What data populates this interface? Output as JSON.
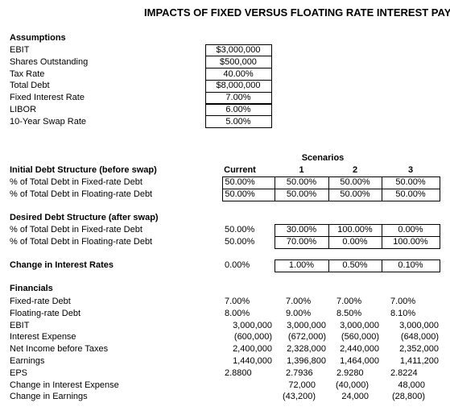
{
  "title": "IMPACTS OF FIXED VERSUS FLOATING RATE INTEREST PAYMENTS",
  "assumptions": {
    "heading": "Assumptions",
    "rows": [
      [
        "EBIT",
        "$3,000,000"
      ],
      [
        "Shares Outstanding",
        "$500,000"
      ],
      [
        "Tax Rate",
        "40.00%"
      ],
      [
        "Total Debt",
        "$8,000,000"
      ],
      [
        "Fixed Interest Rate",
        "7.00%"
      ],
      [
        "LIBOR",
        "6.00%"
      ],
      [
        "10-Year Swap Rate",
        "5.00%"
      ]
    ]
  },
  "scenarios_label": "Scenarios",
  "columns": [
    "Current",
    "1",
    "2",
    "3"
  ],
  "initial": {
    "heading": "Initial Debt Structure (before swap)",
    "rows": [
      {
        "label": "% of Total Debt in Fixed-rate Debt",
        "cells": [
          "50.00%",
          "50.00%",
          "50.00%",
          "50.00%"
        ]
      },
      {
        "label": "% of Total Debt in Floating-rate Debt",
        "cells": [
          "50.00%",
          "50.00%",
          "50.00%",
          "50.00%"
        ]
      }
    ]
  },
  "desired": {
    "heading": "Desired Debt Structure (after swap)",
    "rows": [
      {
        "label": "% of Total Debt in Fixed-rate Debt",
        "cells": [
          "50.00%",
          "30.00%",
          "100.00%",
          "0.00%"
        ]
      },
      {
        "label": "% of Total Debt in Floating-rate Debt",
        "cells": [
          "50.00%",
          "70.00%",
          "0.00%",
          "100.00%"
        ]
      }
    ]
  },
  "change": {
    "label": "Change in Interest Rates",
    "cells": [
      "0.00%",
      "1.00%",
      "0.50%",
      "0.10%"
    ]
  },
  "financials": {
    "heading": "Financials",
    "rows": [
      {
        "label": "Fixed-rate Debt",
        "cells": [
          "7.00%",
          "7.00%",
          "7.00%",
          "7.00%"
        ]
      },
      {
        "label": "Floating-rate Debt",
        "cells": [
          "8.00%",
          "9.00%",
          "8.50%",
          "8.10%"
        ]
      },
      {
        "label": "EBIT",
        "cells": [
          "3,000,000",
          "3,000,000",
          "3,000,000",
          "3,000,000"
        ]
      },
      {
        "label": "Interest Expense",
        "cells": [
          "(600,000)",
          "(672,000)",
          "(560,000)",
          "(648,000)"
        ]
      },
      {
        "label": "Net Income before Taxes",
        "cells": [
          "2,400,000",
          "2,328,000",
          "2,440,000",
          "2,352,000"
        ]
      },
      {
        "label": "Earnings",
        "cells": [
          "1,440,000",
          "1,396,800",
          "1,464,000",
          "1,411,200"
        ]
      },
      {
        "label": "EPS",
        "cells": [
          "2.8800",
          "2.7936",
          "2.9280",
          "2.8224"
        ]
      },
      {
        "label": "Change in Interest Expense",
        "cells": [
          null,
          "72,000",
          "(40,000)",
          "48,000"
        ]
      },
      {
        "label": "Change in Earnings",
        "cells": [
          null,
          "(43,200)",
          "24,000",
          "(28,800)"
        ]
      }
    ]
  }
}
